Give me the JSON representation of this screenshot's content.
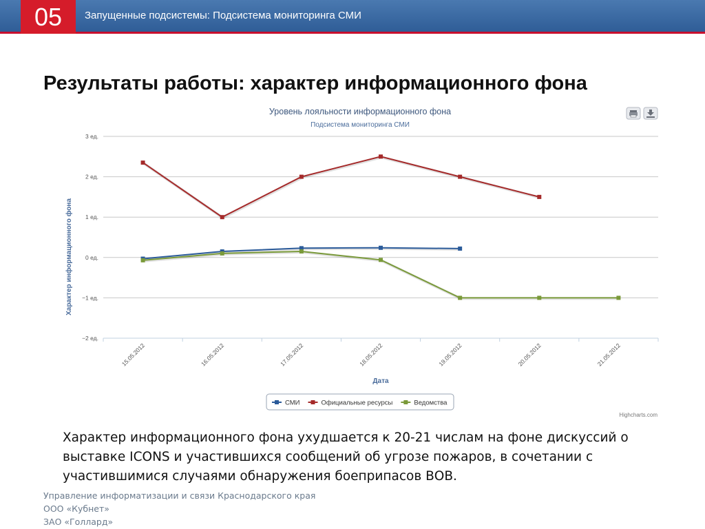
{
  "header": {
    "slide_number": "05",
    "section_title": "Запущенные подсистемы: Подсистема мониторинга СМИ"
  },
  "page": {
    "title": "Результаты работы: характер информационного фона"
  },
  "chart_data": {
    "type": "line",
    "title": "Уровень лояльности информационного фона",
    "subtitle": "Подсистема мониторинга СМИ",
    "xlabel": "Дата",
    "ylabel": "Характер информационного фона",
    "categories": [
      "15.05.2012",
      "16.05.2012",
      "17.05.2012",
      "18.05.2012",
      "19.05.2012",
      "20.05.2012",
      "21.05.2012"
    ],
    "ylim": [
      -2,
      3
    ],
    "yticks": [
      3,
      2,
      1,
      0,
      -1,
      -2
    ],
    "ytick_labels": [
      "3 ед.",
      "2 ед.",
      "1 ед.",
      "0 ед.",
      "−1 ед.",
      "−2 ед."
    ],
    "series": [
      {
        "name": "СМИ",
        "color": "#2b5b9a",
        "values": [
          -0.03,
          0.15,
          0.23,
          0.24,
          0.22,
          null,
          null
        ]
      },
      {
        "name": "Официальные ресурсы",
        "color": "#a52a2a",
        "values": [
          2.35,
          1.0,
          2.0,
          2.5,
          2.0,
          1.5,
          null
        ]
      },
      {
        "name": "Ведомства",
        "color": "#7a9a3a",
        "values": [
          -0.07,
          0.1,
          0.15,
          -0.06,
          -1.0,
          -1.0,
          -1.0
        ]
      }
    ],
    "grid": true,
    "legend_position": "bottom-center",
    "credits": "Highcharts.com",
    "toolbar_icons": [
      "print-icon",
      "download-icon"
    ]
  },
  "body": {
    "text": "Характер информационного фона ухудшается к 20-21 числам на фоне дискуссий о выставке ICONS и участившихся сообщений об угрозе пожаров, в сочетании с участившимися случаями обнаружения боеприпасов ВОВ."
  },
  "footer": {
    "lines": [
      "Управление информатизации и связи Краснодарского края",
      "ООО «Кубнет»",
      "ЗАО «Голлард»"
    ]
  }
}
